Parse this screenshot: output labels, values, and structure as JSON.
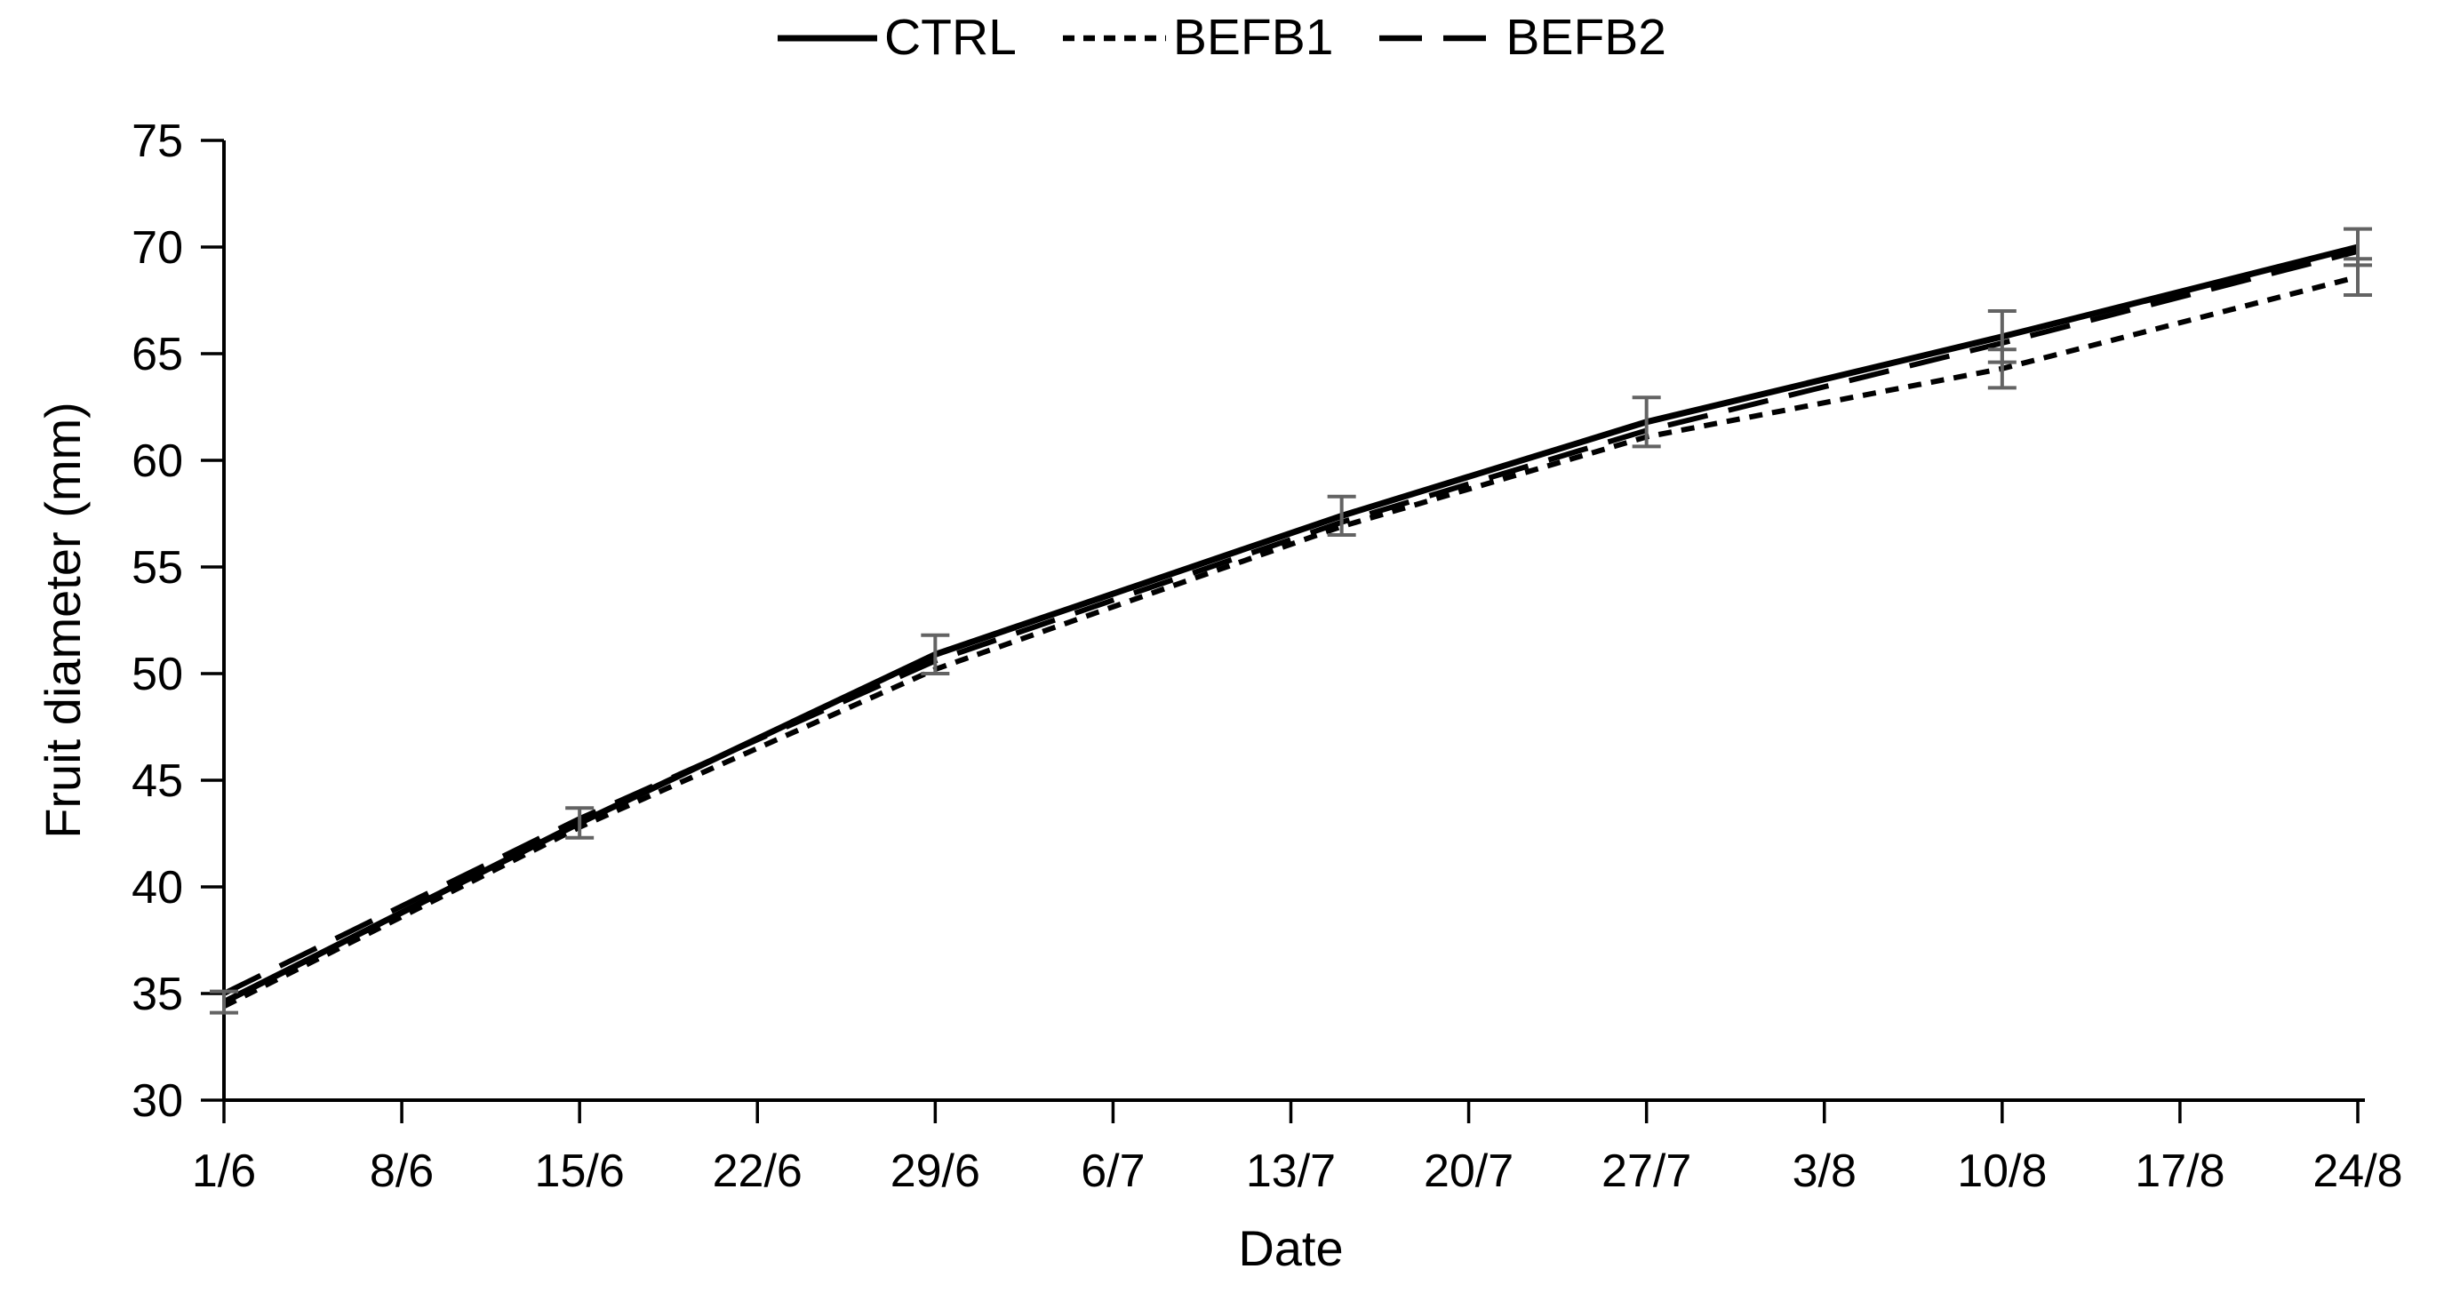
{
  "chart_data": {
    "type": "line",
    "title": "",
    "xlabel": "Date",
    "ylabel": "Fruit diameter (mm)",
    "ylim": [
      30,
      75
    ],
    "ytick_step": 5,
    "ytick_labels": [
      "30",
      "35",
      "40",
      "45",
      "50",
      "55",
      "60",
      "65",
      "70",
      "75"
    ],
    "x_tick_labels": [
      "1/6",
      "8/6",
      "15/6",
      "22/6",
      "29/6",
      "6/7",
      "13/7",
      "20/7",
      "27/7",
      "3/8",
      "10/8",
      "17/8",
      "24/8"
    ],
    "x_tick_days": [
      0,
      7,
      14,
      21,
      28,
      35,
      42,
      49,
      56,
      63,
      70,
      77,
      84
    ],
    "x_range_days": [
      0,
      84
    ],
    "grid": false,
    "legend_position": "top-center",
    "measurement_labels": [
      "1/6",
      "15/6",
      "29/6",
      "15/7",
      "27/7",
      "10/8",
      "24/8"
    ],
    "measurement_days": [
      0,
      14,
      28,
      44,
      56,
      70,
      84
    ],
    "series": [
      {
        "name": "CTRL",
        "style": "solid",
        "values": [
          34.6,
          43.0,
          50.9,
          57.4,
          61.8,
          65.8,
          70.0
        ],
        "errors": [
          0.5,
          0.7,
          0.9,
          0.9,
          1.15,
          1.2,
          0.85
        ]
      },
      {
        "name": "BEFB1",
        "style": "dotted",
        "values": [
          34.4,
          42.8,
          50.2,
          56.9,
          61.1,
          64.3,
          68.6
        ],
        "errors": [
          null,
          null,
          null,
          null,
          null,
          0.9,
          0.85
        ]
      },
      {
        "name": "BEFB2",
        "style": "dashed",
        "values": [
          35.0,
          43.2,
          50.6,
          57.1,
          61.4,
          65.5,
          69.8
        ],
        "errors": [
          null,
          null,
          null,
          null,
          null,
          null,
          null
        ]
      }
    ],
    "colors": {
      "line": "#000000",
      "error_bar": "#636363",
      "axis": "#000000",
      "background": "#ffffff"
    }
  }
}
